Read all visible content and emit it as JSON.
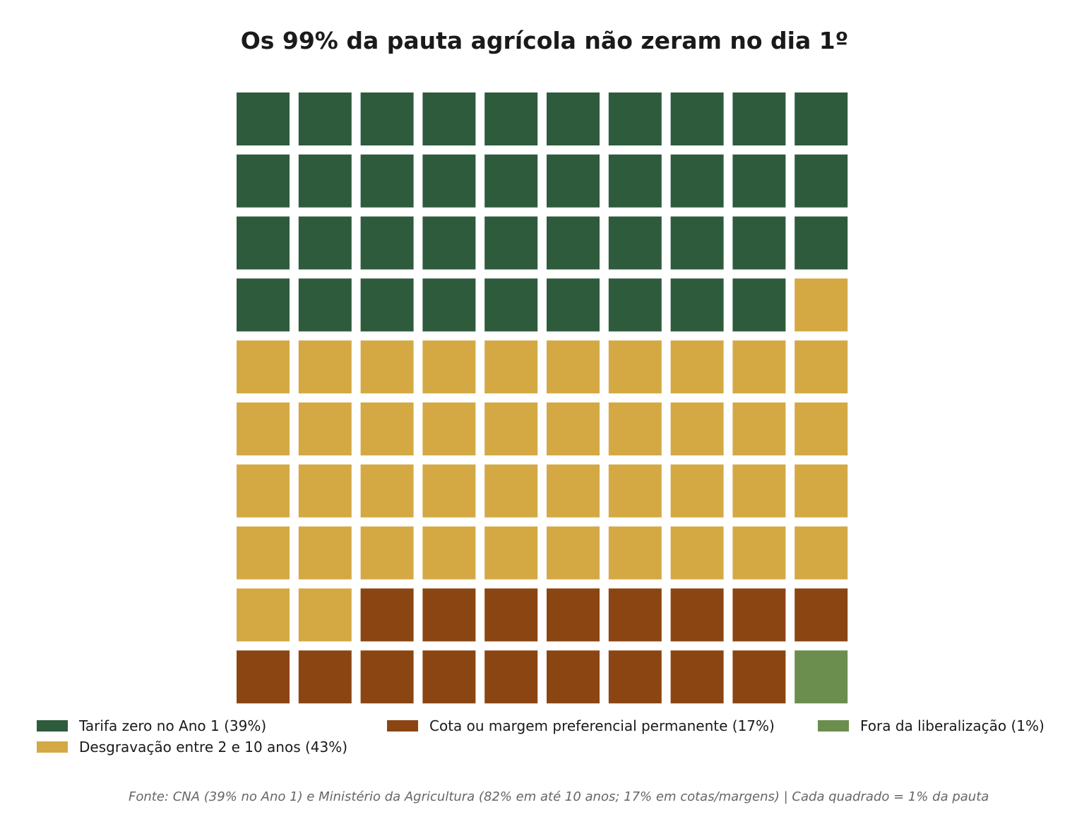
{
  "chart_data": {
    "type": "waffle",
    "title": "Os 99% da pauta agrícola não zeram no dia 1º",
    "grid": {
      "rows": 10,
      "cols": 10,
      "fill_order": "row-major, top-left to bottom-right"
    },
    "unit": "Cada quadrado = 1% da pauta",
    "series": [
      {
        "name": "Tarifa zero no Ano 1 (39%)",
        "value": 39,
        "color": "#2e5b3c"
      },
      {
        "name": "Desgravação entre 2 e 10 anos (43%)",
        "value": 43,
        "color": "#d4a944"
      },
      {
        "name": "Cota ou margem preferencial permanente (17%)",
        "value": 17,
        "color": "#8b4513"
      },
      {
        "name": "Fora da liberalização (1%)",
        "value": 1,
        "color": "#6b8e4e"
      }
    ],
    "legend_position": "bottom",
    "source": "Fonte: CNA (39% no Ano 1) e Ministério da Agricultura (82% em até 10 anos; 17% em cotas/margens) | Cada quadrado = 1% da pauta"
  }
}
